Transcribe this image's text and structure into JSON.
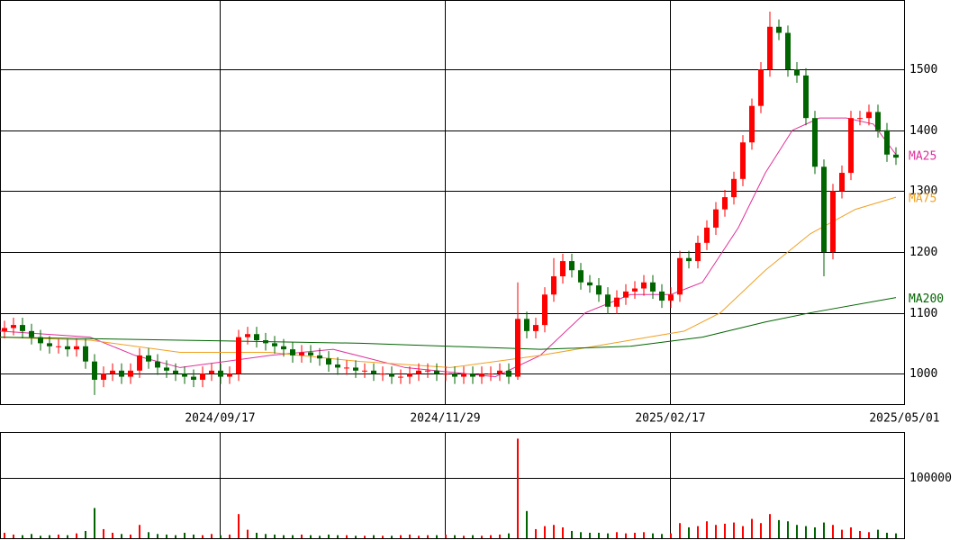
{
  "chart_data": [
    {
      "type": "candlestick",
      "xlim": [
        0,
        100.4
      ],
      "ylim": [
        950,
        1614
      ],
      "xticks": [
        {
          "value": 24.4,
          "label": "2024/09/17"
        },
        {
          "value": 49.4,
          "label": "2024/11/29"
        },
        {
          "value": 74.4,
          "label": "2025/02/17"
        },
        {
          "value": 100.4,
          "label": "2025/05/01"
        }
      ],
      "yticks": [
        1000,
        1100,
        1200,
        1300,
        1400,
        1500
      ],
      "grid": true,
      "up_color": "#ff0000",
      "down_color": "#006400",
      "open": [
        1070,
        1075,
        1080,
        1070,
        1060,
        1050,
        1045,
        1045,
        1040,
        1045,
        1020,
        990,
        1000,
        1005,
        995,
        1005,
        1030,
        1020,
        1010,
        1005,
        1000,
        995,
        990,
        1000,
        1005,
        995,
        1000,
        1060,
        1065,
        1055,
        1050,
        1045,
        1040,
        1030,
        1035,
        1030,
        1025,
        1015,
        1010,
        1010,
        1005,
        1005,
        1000,
        1000,
        995,
        995,
        1000,
        1005,
        1005,
        1000,
        1000,
        995,
        1000,
        995,
        1000,
        1000,
        1005,
        995,
        1090,
        1070,
        1080,
        1130,
        1160,
        1185,
        1170,
        1150,
        1145,
        1130,
        1110,
        1125,
        1135,
        1140,
        1150,
        1135,
        1120,
        1130,
        1190,
        1185,
        1215,
        1240,
        1270,
        1290,
        1320,
        1380,
        1440,
        1500,
        1570,
        1560,
        1500,
        1490,
        1420,
        1340,
        1200,
        1300,
        1330,
        1420,
        1420,
        1430,
        1400,
        1360
      ],
      "high": [
        1087,
        1092,
        1092,
        1082,
        1072,
        1062,
        1057,
        1057,
        1057,
        1057,
        1032,
        1012,
        1017,
        1017,
        1017,
        1042,
        1042,
        1032,
        1022,
        1017,
        1012,
        1007,
        1012,
        1017,
        1017,
        1012,
        1072,
        1077,
        1077,
        1067,
        1062,
        1057,
        1052,
        1047,
        1047,
        1042,
        1037,
        1027,
        1022,
        1022,
        1017,
        1017,
        1012,
        1012,
        1007,
        1012,
        1017,
        1017,
        1017,
        1012,
        1012,
        1012,
        1012,
        1012,
        1012,
        1017,
        1017,
        1150,
        1102,
        1092,
        1142,
        1190,
        1197,
        1197,
        1182,
        1162,
        1157,
        1142,
        1137,
        1147,
        1152,
        1162,
        1162,
        1147,
        1142,
        1202,
        1202,
        1227,
        1252,
        1282,
        1302,
        1332,
        1392,
        1452,
        1512,
        1595,
        1582,
        1572,
        1512,
        1502,
        1432,
        1352,
        1312,
        1342,
        1432,
        1432,
        1442,
        1442,
        1412,
        1372
      ],
      "low": [
        1058,
        1063,
        1058,
        1048,
        1038,
        1033,
        1033,
        1028,
        1028,
        1008,
        965,
        978,
        988,
        983,
        983,
        993,
        1008,
        998,
        993,
        988,
        983,
        978,
        978,
        988,
        983,
        983,
        988,
        1048,
        1043,
        1038,
        1033,
        1028,
        1018,
        1018,
        1018,
        1013,
        1003,
        998,
        998,
        993,
        993,
        988,
        988,
        983,
        983,
        983,
        988,
        993,
        988,
        988,
        983,
        983,
        983,
        983,
        988,
        988,
        983,
        990,
        1058,
        1058,
        1068,
        1118,
        1148,
        1158,
        1138,
        1133,
        1118,
        1098,
        1098,
        1113,
        1123,
        1128,
        1123,
        1108,
        1108,
        1118,
        1173,
        1173,
        1203,
        1228,
        1258,
        1278,
        1308,
        1368,
        1428,
        1488,
        1548,
        1488,
        1478,
        1408,
        1328,
        1160,
        1188,
        1288,
        1318,
        1408,
        1408,
        1388,
        1348,
        1343
      ],
      "close": [
        1075,
        1080,
        1070,
        1060,
        1050,
        1045,
        1045,
        1040,
        1045,
        1020,
        990,
        1000,
        1005,
        995,
        1005,
        1030,
        1020,
        1010,
        1005,
        1000,
        995,
        990,
        1000,
        1005,
        995,
        1000,
        1060,
        1065,
        1055,
        1050,
        1045,
        1040,
        1030,
        1035,
        1030,
        1025,
        1015,
        1010,
        1010,
        1005,
        1005,
        1000,
        1000,
        995,
        995,
        1000,
        1005,
        1005,
        1000,
        1000,
        995,
        1000,
        995,
        1000,
        1000,
        1005,
        995,
        1090,
        1070,
        1080,
        1130,
        1160,
        1185,
        1170,
        1150,
        1145,
        1130,
        1110,
        1125,
        1135,
        1140,
        1150,
        1135,
        1120,
        1130,
        1190,
        1185,
        1215,
        1240,
        1270,
        1290,
        1320,
        1380,
        1440,
        1500,
        1570,
        1560,
        1500,
        1490,
        1420,
        1340,
        1200,
        1300,
        1330,
        1420,
        1420,
        1430,
        1400,
        1360,
        1355
      ],
      "lines": [
        {
          "name": "MA25",
          "color": "#e0309a",
          "x": [
            0,
            10,
            15,
            20,
            30,
            37,
            45,
            55,
            60,
            65,
            70,
            74.5,
            78,
            82,
            85,
            88,
            91,
            94,
            97,
            99.5
          ],
          "values": [
            1070,
            1060,
            1030,
            1010,
            1030,
            1040,
            1010,
            995,
            1030,
            1100,
            1130,
            1130,
            1150,
            1240,
            1330,
            1400,
            1420,
            1420,
            1410,
            1360
          ]
        },
        {
          "name": "MA75",
          "color": "#f0a020",
          "x": [
            0,
            10,
            20,
            30,
            40,
            50,
            60,
            70,
            76,
            80,
            85,
            90,
            95,
            99.5
          ],
          "values": [
            1060,
            1055,
            1035,
            1035,
            1020,
            1010,
            1030,
            1055,
            1070,
            1100,
            1170,
            1230,
            1270,
            1290
          ]
        },
        {
          "name": "MA200",
          "color": "#006400",
          "x": [
            0,
            20,
            40,
            60,
            70,
            78,
            85,
            90,
            99.5
          ],
          "values": [
            1060,
            1055,
            1050,
            1040,
            1045,
            1060,
            1085,
            1100,
            1125
          ]
        }
      ]
    },
    {
      "type": "bar",
      "xlim": [
        0,
        100.4
      ],
      "ylim": [
        0,
        176000
      ],
      "yticks": [
        100000
      ],
      "color_up": "#ff0000",
      "color_down": "#006400",
      "values": [
        9000,
        6000,
        5000,
        7000,
        4000,
        5000,
        6000,
        5000,
        8000,
        12000,
        50000,
        15000,
        9000,
        7000,
        6000,
        22000,
        10000,
        7000,
        6000,
        5000,
        9000,
        6000,
        5000,
        7000,
        5000,
        6000,
        40000,
        14000,
        9000,
        7000,
        6000,
        5000,
        5000,
        6000,
        5000,
        4000,
        6000,
        5000,
        5000,
        4000,
        4000,
        5000,
        4000,
        4000,
        5000,
        6000,
        4000,
        5000,
        5000,
        6000,
        5000,
        4000,
        5000,
        4000,
        5000,
        6000,
        8000,
        165000,
        45000,
        15000,
        20000,
        22000,
        18000,
        12000,
        10000,
        9000,
        9000,
        8000,
        10000,
        8000,
        9000,
        10000,
        8000,
        7000,
        8000,
        25000,
        18000,
        20000,
        28000,
        22000,
        24000,
        26000,
        20000,
        32000,
        25000,
        40000,
        30000,
        28000,
        22000,
        20000,
        18000,
        26000,
        22000,
        14000,
        18000,
        12000,
        10000,
        14000,
        9000,
        8000
      ]
    }
  ]
}
